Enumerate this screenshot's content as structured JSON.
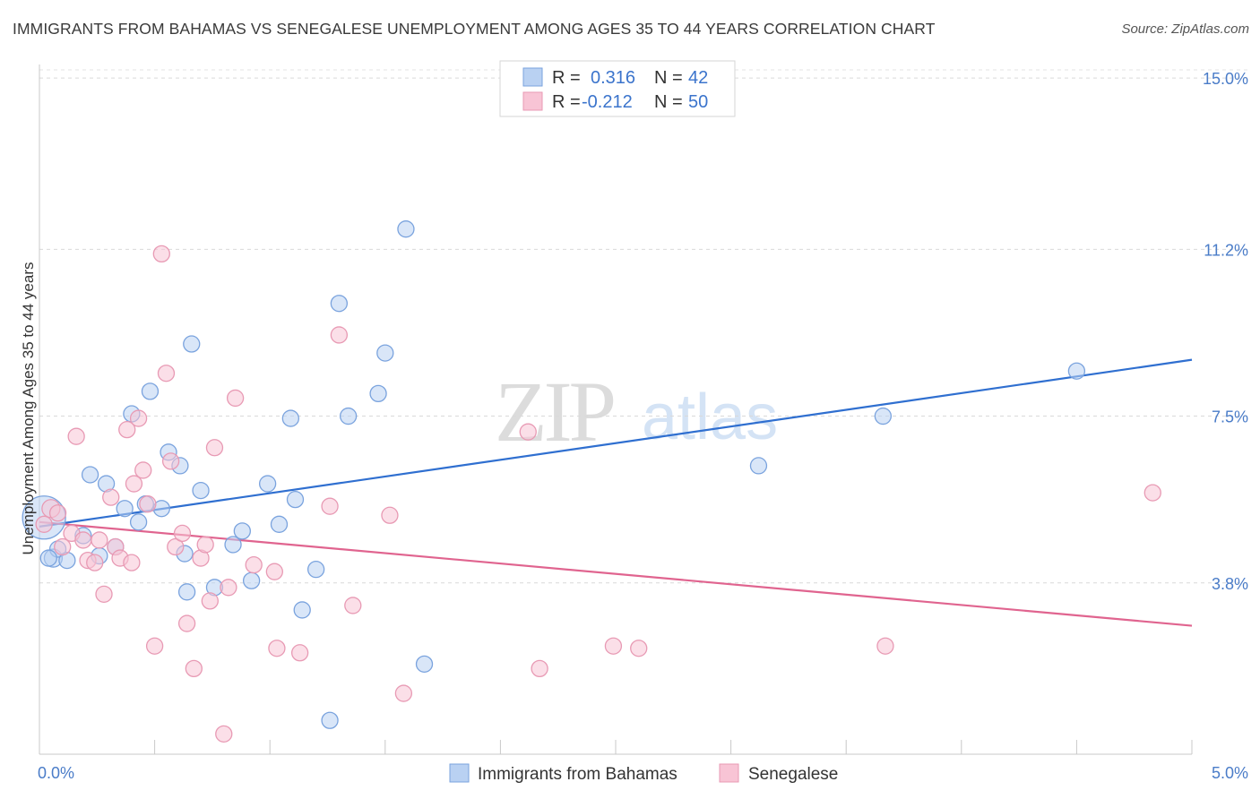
{
  "title": "IMMIGRANTS FROM BAHAMAS VS SENEGALESE UNEMPLOYMENT AMONG AGES 35 TO 44 YEARS CORRELATION CHART",
  "source": "Source: ZipAtlas.com",
  "watermark": {
    "zip": "ZIP",
    "atlas": "atlas"
  },
  "legend": {
    "r_label": "R =",
    "n_label": "N =",
    "rows": [
      {
        "r": "0.316",
        "n": "42"
      },
      {
        "r": "-0.212",
        "n": "50"
      }
    ]
  },
  "chart_data": {
    "type": "scatter",
    "title": "IMMIGRANTS FROM BAHAMAS VS SENEGALESE UNEMPLOYMENT AMONG AGES 35 TO 44 YEARS CORRELATION CHART",
    "xlabel": "",
    "ylabel": "Unemployment Among Ages 35 to 44 years",
    "xlim": [
      0,
      5
    ],
    "ylim": [
      0,
      15.3
    ],
    "x_tick_labels": [
      "0.0%",
      "5.0%"
    ],
    "y_ticks": [
      3.8,
      7.5,
      11.2,
      15.0
    ],
    "y_tick_labels": [
      "3.8%",
      "7.5%",
      "11.2%",
      "15.0%"
    ],
    "grid": true,
    "legend_position": "top-center",
    "colors": {
      "bahamas": "#2f6fd0",
      "bahamas_fill": "#b9d1f2",
      "senegalese": "#e0648f",
      "senegalese_fill": "#f8c4d5"
    },
    "series": [
      {
        "name": "Immigrants from Bahamas",
        "r": 0.316,
        "n": 42,
        "trend": [
          [
            0,
            5.05
          ],
          [
            5,
            8.75
          ]
        ],
        "points": [
          [
            0.02,
            5.25,
            24
          ],
          [
            0.06,
            4.35,
            10
          ],
          [
            0.08,
            4.55,
            9
          ],
          [
            0.12,
            4.3,
            9
          ],
          [
            0.19,
            4.85,
            9
          ],
          [
            0.22,
            6.2,
            9
          ],
          [
            0.26,
            4.4,
            9
          ],
          [
            0.29,
            6.0,
            9
          ],
          [
            0.33,
            4.6,
            9
          ],
          [
            0.37,
            5.45,
            9
          ],
          [
            0.4,
            7.55,
            9
          ],
          [
            0.43,
            5.15,
            9
          ],
          [
            0.46,
            5.55,
            9
          ],
          [
            0.48,
            8.05,
            9
          ],
          [
            0.53,
            5.45,
            9
          ],
          [
            0.56,
            6.7,
            9
          ],
          [
            0.61,
            6.4,
            9
          ],
          [
            0.63,
            4.45,
            9
          ],
          [
            0.64,
            3.6,
            9
          ],
          [
            0.66,
            9.1,
            9
          ],
          [
            0.7,
            5.85,
            9
          ],
          [
            0.76,
            3.7,
            9
          ],
          [
            0.84,
            4.65,
            9
          ],
          [
            0.88,
            4.95,
            9
          ],
          [
            0.92,
            3.85,
            9
          ],
          [
            0.99,
            6.0,
            9
          ],
          [
            1.04,
            5.1,
            9
          ],
          [
            1.09,
            7.45,
            9
          ],
          [
            1.11,
            5.65,
            9
          ],
          [
            1.14,
            3.2,
            9
          ],
          [
            1.2,
            4.1,
            9
          ],
          [
            1.26,
            0.75,
            9
          ],
          [
            1.3,
            10.0,
            9
          ],
          [
            1.34,
            7.5,
            9
          ],
          [
            1.47,
            8.0,
            9
          ],
          [
            1.5,
            8.9,
            9
          ],
          [
            1.59,
            11.65,
            9
          ],
          [
            1.67,
            2.0,
            9
          ],
          [
            3.12,
            6.4,
            9
          ],
          [
            3.66,
            7.5,
            9
          ],
          [
            4.5,
            8.5,
            9
          ],
          [
            0.04,
            4.35,
            9
          ]
        ]
      },
      {
        "name": "Senegalese",
        "r": -0.212,
        "n": 50,
        "trend": [
          [
            0,
            5.15
          ],
          [
            5,
            2.85
          ]
        ],
        "points": [
          [
            0.02,
            5.1,
            9
          ],
          [
            0.05,
            5.45,
            10
          ],
          [
            0.08,
            5.35,
            9
          ],
          [
            0.1,
            4.6,
            9
          ],
          [
            0.14,
            4.9,
            9
          ],
          [
            0.16,
            7.05,
            9
          ],
          [
            0.19,
            4.75,
            9
          ],
          [
            0.21,
            4.3,
            9
          ],
          [
            0.24,
            4.25,
            9
          ],
          [
            0.26,
            4.75,
            9
          ],
          [
            0.28,
            3.55,
            9
          ],
          [
            0.31,
            5.7,
            9
          ],
          [
            0.33,
            4.6,
            9
          ],
          [
            0.35,
            4.35,
            9
          ],
          [
            0.38,
            7.2,
            9
          ],
          [
            0.4,
            4.25,
            9
          ],
          [
            0.41,
            6.0,
            9
          ],
          [
            0.43,
            7.45,
            9
          ],
          [
            0.45,
            6.3,
            9
          ],
          [
            0.47,
            5.55,
            9
          ],
          [
            0.5,
            2.4,
            9
          ],
          [
            0.53,
            11.1,
            9
          ],
          [
            0.55,
            8.45,
            9
          ],
          [
            0.57,
            6.5,
            9
          ],
          [
            0.59,
            4.6,
            9
          ],
          [
            0.62,
            4.9,
            9
          ],
          [
            0.64,
            2.9,
            9
          ],
          [
            0.67,
            1.9,
            9
          ],
          [
            0.7,
            4.35,
            9
          ],
          [
            0.72,
            4.65,
            9
          ],
          [
            0.74,
            3.4,
            9
          ],
          [
            0.76,
            6.8,
            9
          ],
          [
            0.8,
            0.45,
            9
          ],
          [
            0.82,
            3.7,
            9
          ],
          [
            0.85,
            7.9,
            9
          ],
          [
            0.93,
            4.2,
            9
          ],
          [
            1.02,
            4.05,
            9
          ],
          [
            1.03,
            2.35,
            9
          ],
          [
            1.13,
            2.25,
            9
          ],
          [
            1.26,
            5.5,
            9
          ],
          [
            1.3,
            9.3,
            9
          ],
          [
            1.36,
            3.3,
            9
          ],
          [
            1.52,
            5.3,
            9
          ],
          [
            1.58,
            1.35,
            9
          ],
          [
            2.12,
            7.15,
            9
          ],
          [
            2.17,
            1.9,
            9
          ],
          [
            2.49,
            2.4,
            9
          ],
          [
            2.6,
            2.35,
            9
          ],
          [
            3.67,
            2.4,
            9
          ],
          [
            4.83,
            5.8,
            9
          ]
        ]
      }
    ]
  }
}
